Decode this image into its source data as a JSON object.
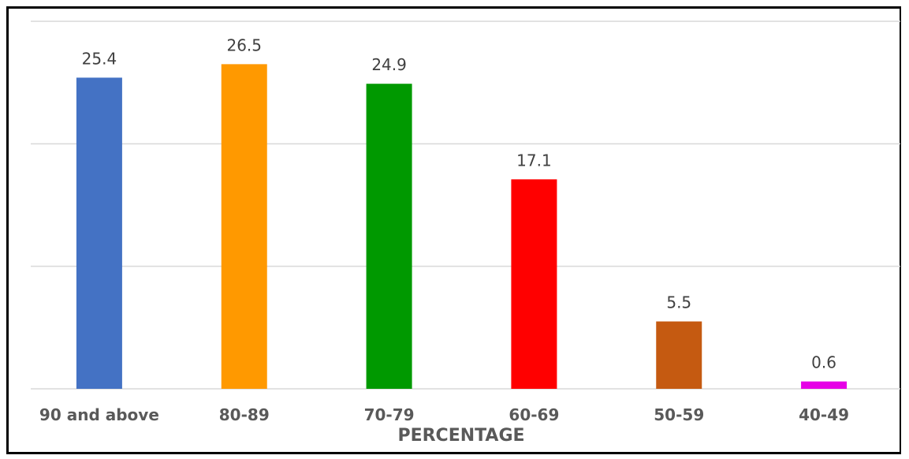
{
  "chart_data": {
    "type": "bar",
    "title": "",
    "xlabel": "PERCENTAGE",
    "ylabel": "",
    "ylim": [
      0,
      30
    ],
    "grid": true,
    "categories": [
      "90 and above",
      "80-89",
      "70-79",
      "60-69",
      "50-59",
      "40-49"
    ],
    "values": [
      25.4,
      26.5,
      24.9,
      17.1,
      5.5,
      0.6
    ],
    "value_labels": [
      "25.4",
      "26.5",
      "24.9",
      "17.1",
      "5.5",
      "0.6"
    ],
    "colors": [
      "#4472C4",
      "#FF9900",
      "#009900",
      "#FF0000",
      "#C55A11",
      "#E600E6"
    ]
  }
}
